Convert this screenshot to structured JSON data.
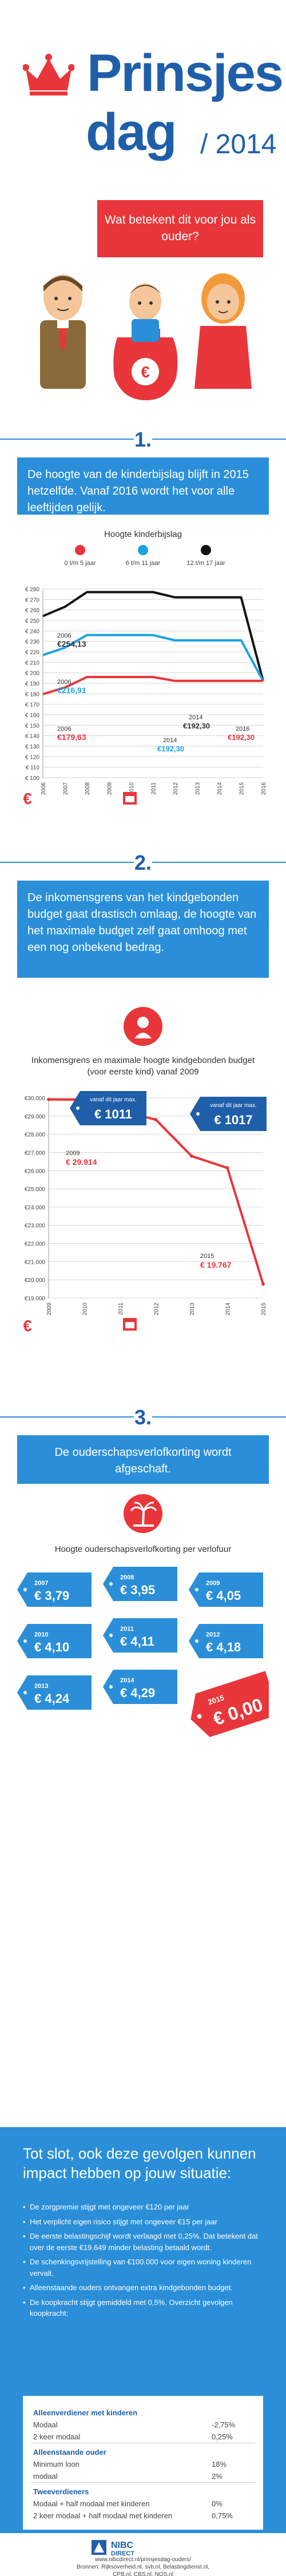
{
  "header": {
    "title_line1": "Prinsjes",
    "title_line2": "dag",
    "year": "/ 2014"
  },
  "question": "Wat betekent dit voor jou als ouder?",
  "section1": {
    "number": "1.",
    "text": "De hoogte van de kinderbijslag blijft in 2015 hetzelfde. Vanaf 2016 wordt het voor alle leeftijden gelijk.",
    "chart_title": "Hoogte kinderbijslag",
    "legend": [
      "0 t/m 5 jaar",
      "6 t/m 11 jaar",
      "12 t/m 17 jaar"
    ],
    "annotations": {
      "a2006_top_year": "2006",
      "a2006_top_val": "€254,13",
      "a2006_mid_year": "2006",
      "a2006_mid_val": "€216,91",
      "a2006_low_year": "2006",
      "a2006_low_val": "€179,63",
      "a2014_a_year": "2014",
      "a2014_a_val": "€192,30",
      "a2014_b_year": "2014",
      "a2014_b_val": "€192,30",
      "a2016_year": "2016",
      "a2016_val": "€192,30"
    }
  },
  "section2": {
    "number": "2.",
    "text": "De inkomensgrens van het kindgebonden budget gaat drastisch omlaag, de hoogte van het maximale budget zelf gaat omhoog met een nog onbekend bedrag.",
    "chart_title": "Inkomensgrens en maximale hoogte kindgebonden budget (voor eerste kind) vanaf 2009",
    "tag1_top": "vanaf dit jaar max.",
    "tag1_val": "€ 1011",
    "tag2_top": "vanaf dit jaar max.",
    "tag2_val": "€ 1017",
    "a2009_year": "2009",
    "a2009_val": "€ 29.914",
    "a2015_year": "2015",
    "a2015_val": "€ 19.767"
  },
  "section3": {
    "number": "3.",
    "text": "De ouderschapsverlofkorting wordt afgeschaft.",
    "chart_title": "Hoogte ouderschapsverlofkorting per verlofuur",
    "tags": [
      {
        "year": "2007",
        "val": "€ 3,79"
      },
      {
        "year": "2008",
        "val": "€ 3,95"
      },
      {
        "year": "2009",
        "val": "€ 4,05"
      },
      {
        "year": "2010",
        "val": "€ 4,10"
      },
      {
        "year": "2011",
        "val": "€ 4,11"
      },
      {
        "year": "2012",
        "val": "€ 4,18"
      },
      {
        "year": "2013",
        "val": "€ 4,24"
      },
      {
        "year": "2014",
        "val": "€ 4,29"
      }
    ],
    "final_tag": {
      "year": "2015",
      "val": "€ 0,00"
    }
  },
  "summary": {
    "title": "Tot slot, ook deze gevolgen kunnen impact hebben op jouw situatie:",
    "bullets": [
      "De zorgpremie stijgt met ongeveer €120 per jaar",
      "Het verplicht eigen risico stijgt met ongeveer €15 per jaar",
      "De eerste belastingschijf wordt verlaagd met 0,25%. Dat betekent dat over de eerste €19.649 minder belasting betaald wordt.",
      "De schenkingsvrijstelling van €100.000 voor eigen woning kinderen vervalt.",
      "Alleenstaande ouders ontvangen extra kindgebonden budget.",
      "De koopkracht stijgt gemiddeld met 0,5%. Overzicht gevolgen koopkracht:"
    ],
    "table": [
      {
        "group": "Alleenverdiener met kinderen",
        "rows": [
          {
            "label": "Modaal",
            "val": "-2,75%"
          },
          {
            "label": "2 keer modaal",
            "val": "0,25%"
          }
        ]
      },
      {
        "group": "Alleenstaande ouder",
        "rows": [
          {
            "label": "Minimum loon",
            "val": "18%"
          },
          {
            "label": "modaal",
            "val": "2%"
          }
        ]
      },
      {
        "group": "Tweeverdieners",
        "rows": [
          {
            "label": "Modaal + half modaal met kinderen",
            "val": "0%"
          },
          {
            "label": "2 keer modaal + half modaal met kinderen",
            "val": "0,75%"
          }
        ]
      }
    ]
  },
  "footer": {
    "brand1": "NIBC",
    "brand2": "DIRECT",
    "line1": "www.nibcdirect.nl/prinsjesdag-ouders/",
    "line2": "Bronnen: Rijksoverheid.nl, svb.nl, Belastingdienst.nl,",
    "line3": "CPB.nl, CBS.nl, NOS.nl"
  },
  "colors": {
    "blue": "#1f5fa9",
    "light_blue": "#2a8fd8",
    "red": "#e8363a",
    "black": "#111111",
    "cyan": "#1ba3e0"
  },
  "chart_data": [
    {
      "type": "line",
      "title": "Hoogte kinderbijslag",
      "x": [
        2006,
        2007,
        2008,
        2009,
        2010,
        2011,
        2012,
        2013,
        2014,
        2015,
        2016
      ],
      "ylim": [
        100,
        280
      ],
      "yticks": [
        100,
        110,
        120,
        130,
        140,
        150,
        160,
        170,
        180,
        190,
        200,
        210,
        220,
        230,
        240,
        250,
        260,
        270,
        280
      ],
      "series": [
        {
          "name": "12 t/m 17 jaar",
          "color": "#111111",
          "values": [
            254.13,
            263,
            277,
            277,
            277,
            277,
            272,
            272,
            272,
            272,
            192.3
          ]
        },
        {
          "name": "6 t/m 11 jaar",
          "color": "#1ba3e0",
          "values": [
            216.91,
            224,
            236,
            236,
            236,
            236,
            231,
            231,
            231,
            231,
            192.3
          ]
        },
        {
          "name": "0 t/m 5 jaar",
          "color": "#e8363a",
          "values": [
            179.63,
            186,
            196,
            196,
            196,
            196,
            192.3,
            192.3,
            192.3,
            192.3,
            192.3
          ]
        }
      ]
    },
    {
      "type": "line",
      "title": "Inkomensgrens en maximale hoogte kindgebonden budget (voor eerste kind) vanaf 2009",
      "x": [
        2009,
        2010,
        2011,
        2012,
        2013,
        2014,
        2015
      ],
      "ylim": [
        19000,
        30000
      ],
      "yticks": [
        19000,
        20000,
        21000,
        22000,
        23000,
        24000,
        25000,
        26000,
        27000,
        28000,
        29000,
        30000
      ],
      "series": [
        {
          "name": "Inkomensgrens",
          "color": "#e8363a",
          "values": [
            29914,
            29900,
            29300,
            28800,
            26800,
            26150,
            19767
          ]
        }
      ]
    }
  ]
}
